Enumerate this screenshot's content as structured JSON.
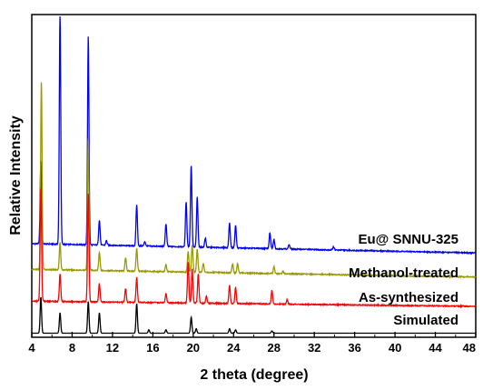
{
  "chart_data": {
    "type": "line",
    "title": "",
    "xlabel": "2 theta (degree)",
    "ylabel": "Relative Intensity",
    "xlim": [
      4,
      48
    ],
    "xticks": [
      4,
      8,
      12,
      16,
      20,
      24,
      28,
      32,
      36,
      40,
      44,
      48
    ],
    "yticks_visible": false,
    "grid": false,
    "series": [
      {
        "name": "Eu@ SNNU-325",
        "color": "#0000ff",
        "baseline_start": 0.68,
        "baseline_end": 0.27,
        "peaks": [
          [
            4.9,
            3.7
          ],
          [
            6.8,
            10.4
          ],
          [
            9.6,
            9.2
          ],
          [
            10.7,
            1.1
          ],
          [
            11.4,
            0.2
          ],
          [
            14.4,
            1.8
          ],
          [
            15.2,
            0.2
          ],
          [
            17.3,
            1.0
          ],
          [
            19.3,
            2.0
          ],
          [
            19.8,
            3.6
          ],
          [
            20.4,
            2.2
          ],
          [
            21.2,
            0.4
          ],
          [
            23.6,
            1.1
          ],
          [
            24.2,
            1.0
          ],
          [
            27.6,
            0.7
          ],
          [
            28.0,
            0.4
          ],
          [
            29.5,
            0.2
          ],
          [
            33.9,
            0.15
          ]
        ]
      },
      {
        "name": "Methanol-treated",
        "color": "#999900",
        "baseline_start": 0.55,
        "baseline_end": 0.21,
        "peaks": [
          [
            4.95,
            8.3
          ],
          [
            6.8,
            1.2
          ],
          [
            9.6,
            5.8
          ],
          [
            10.7,
            0.8
          ],
          [
            13.3,
            0.6
          ],
          [
            14.4,
            1.0
          ],
          [
            17.3,
            0.3
          ],
          [
            19.5,
            0.9
          ],
          [
            19.9,
            1.2
          ],
          [
            20.4,
            1.0
          ],
          [
            21.0,
            0.4
          ],
          [
            23.9,
            0.4
          ],
          [
            24.4,
            0.4
          ],
          [
            28.0,
            0.3
          ],
          [
            28.9,
            0.1
          ]
        ]
      },
      {
        "name": "As-synthesized",
        "color": "#ff0000",
        "baseline_start": 0.35,
        "baseline_end": 0.12,
        "peaks": [
          [
            4.9,
            5.0
          ],
          [
            6.8,
            1.2
          ],
          [
            9.6,
            4.8
          ],
          [
            10.7,
            0.8
          ],
          [
            13.3,
            0.6
          ],
          [
            14.4,
            1.1
          ],
          [
            17.3,
            0.4
          ],
          [
            19.5,
            1.8
          ],
          [
            19.9,
            1.5
          ],
          [
            20.5,
            1.3
          ],
          [
            21.3,
            0.3
          ],
          [
            23.6,
            0.8
          ],
          [
            24.2,
            0.7
          ],
          [
            27.8,
            0.6
          ],
          [
            29.3,
            0.2
          ]
        ]
      },
      {
        "name": "Simulated",
        "color": "#000000",
        "baseline_start": 0.02,
        "baseline_end": 0.02,
        "peaks": [
          [
            4.9,
            1.6
          ],
          [
            6.8,
            0.9
          ],
          [
            9.6,
            1.4
          ],
          [
            10.7,
            0.9
          ],
          [
            14.4,
            1.3
          ],
          [
            15.6,
            0.15
          ],
          [
            17.3,
            0.15
          ],
          [
            19.8,
            0.7
          ],
          [
            20.3,
            0.2
          ],
          [
            23.6,
            0.2
          ],
          [
            24.2,
            0.15
          ],
          [
            27.8,
            0.1
          ]
        ]
      }
    ],
    "annotations": [
      {
        "text": "Eu@ SNNU-325",
        "series": 0
      },
      {
        "text": "Methanol-treated",
        "series": 1
      },
      {
        "text": "As-synthesized",
        "series": 2
      },
      {
        "text": "Simulated",
        "series": 3
      }
    ]
  }
}
